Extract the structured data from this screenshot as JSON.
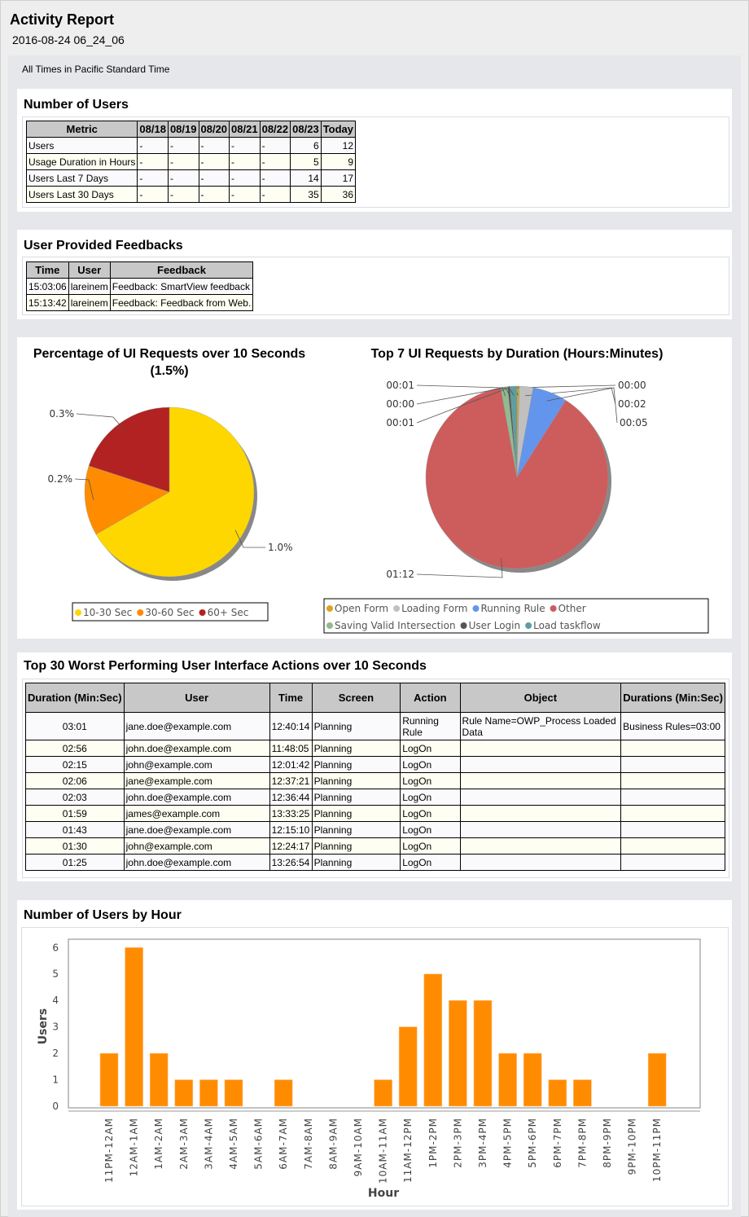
{
  "header": {
    "title": "Activity Report",
    "timestamp": "2016-08-24 06_24_06",
    "timezone_note": "All Times in Pacific Standard Time"
  },
  "users_section": {
    "title": "Number of Users",
    "columns": [
      "Metric",
      "08/18",
      "08/19",
      "08/20",
      "08/21",
      "08/22",
      "08/23",
      "Today"
    ],
    "rows": [
      [
        "Users",
        "-",
        "-",
        "-",
        "-",
        "-",
        "6",
        "12"
      ],
      [
        "Usage Duration in Hours",
        "-",
        "-",
        "-",
        "-",
        "-",
        "5",
        "9"
      ],
      [
        "Users Last 7 Days",
        "-",
        "-",
        "-",
        "-",
        "-",
        "14",
        "17"
      ],
      [
        "Users Last 30 Days",
        "-",
        "-",
        "-",
        "-",
        "-",
        "35",
        "36"
      ]
    ]
  },
  "feedback_section": {
    "title": "User Provided Feedbacks",
    "columns": [
      "Time",
      "User",
      "Feedback"
    ],
    "rows": [
      [
        "15:03:06",
        "lareinem",
        "Feedback: SmartView feedback"
      ],
      [
        "15:13:42",
        "lareinem",
        "Feedback: Feedback from Web."
      ]
    ]
  },
  "worst_section": {
    "title": "Top 30 Worst Performing User Interface Actions over 10 Seconds",
    "columns": [
      "Duration (Min:Sec)",
      "User",
      "Time",
      "Screen",
      "Action",
      "Object",
      "Durations (Min:Sec)"
    ],
    "rows": [
      [
        "03:01",
        "jane.doe@example.com",
        "12:40:14",
        "Planning",
        "Running Rule",
        "Rule Name=OWP_Process Loaded Data",
        "Business Rules=03:00"
      ],
      [
        "02:56",
        "john.doe@example.com",
        "11:48:05",
        "Planning",
        "LogOn",
        "",
        ""
      ],
      [
        "02:15",
        "john@example.com",
        "12:01:42",
        "Planning",
        "LogOn",
        "",
        ""
      ],
      [
        "02:06",
        "jane@example.com",
        "12:37:21",
        "Planning",
        "LogOn",
        "",
        ""
      ],
      [
        "02:03",
        "john.doe@example.com",
        "12:36:44",
        "Planning",
        "LogOn",
        "",
        ""
      ],
      [
        "01:59",
        "james@example.com",
        "13:33:25",
        "Planning",
        "LogOn",
        "",
        ""
      ],
      [
        "01:43",
        "jane.doe@example.com",
        "12:15:10",
        "Planning",
        "LogOn",
        "",
        ""
      ],
      [
        "01:30",
        "john@example.com",
        "12:24:17",
        "Planning",
        "LogOn",
        "",
        ""
      ],
      [
        "01:25",
        "john.doe@example.com",
        "13:26:54",
        "Planning",
        "LogOn",
        "",
        ""
      ]
    ]
  },
  "chart_data": [
    {
      "type": "pie",
      "title": "Percentage of UI Requests over 10 Seconds",
      "subtitle": "(1.5%)",
      "categories": [
        "10-30 Sec",
        "30-60 Sec",
        "60+ Sec"
      ],
      "values": [
        1.0,
        0.2,
        0.3
      ],
      "labels": [
        "1.0%",
        "0.2%",
        "0.3%"
      ],
      "colors": [
        "#ffd700",
        "#ff8c00",
        "#b22222"
      ],
      "legend": "bottom"
    },
    {
      "type": "pie",
      "title": "Top 7 UI Requests by Duration (Hours:Minutes)",
      "categories": [
        "Open Form",
        "Loading Form",
        "Running Rule",
        "Other",
        "Saving Valid Intersection",
        "User Login",
        "Load taskflow"
      ],
      "values": [
        0,
        2,
        5,
        72,
        1,
        0,
        1
      ],
      "labels": [
        "00:00",
        "00:02",
        "00:05",
        "01:12",
        "00:01",
        "00:00",
        "00:01"
      ],
      "colors": [
        "#daa520",
        "#c0c0c0",
        "#6495ed",
        "#cd5c5c",
        "#8fbc8f",
        "#555555",
        "#5f9ea0"
      ],
      "legend": "bottom"
    },
    {
      "type": "bar",
      "title": "Number of Users by Hour",
      "xlabel": "Hour",
      "ylabel": "Users",
      "ylim": [
        0,
        6
      ],
      "yticks": [
        0,
        1,
        2,
        3,
        4,
        5,
        6
      ],
      "color": "#ff8c00",
      "grid": false,
      "categories": [
        "11PM-12AM",
        "12AM-1AM",
        "1AM-2AM",
        "2AM-3AM",
        "3AM-4AM",
        "4AM-5AM",
        "5AM-6AM",
        "6AM-7AM",
        "7AM-8AM",
        "8AM-9AM",
        "9AM-10AM",
        "10AM-11AM",
        "11AM-12PM",
        "1PM-2PM",
        "2PM-3PM",
        "3PM-4PM",
        "4PM-5PM",
        "5PM-6PM",
        "6PM-7PM",
        "7PM-8PM",
        "8PM-9PM",
        "9PM-10PM",
        "10PM-11PM"
      ],
      "values": [
        2,
        6,
        2,
        1,
        1,
        1,
        0,
        1,
        0,
        0,
        0,
        1,
        3,
        5,
        4,
        4,
        2,
        2,
        1,
        1,
        0,
        0,
        2
      ]
    }
  ]
}
